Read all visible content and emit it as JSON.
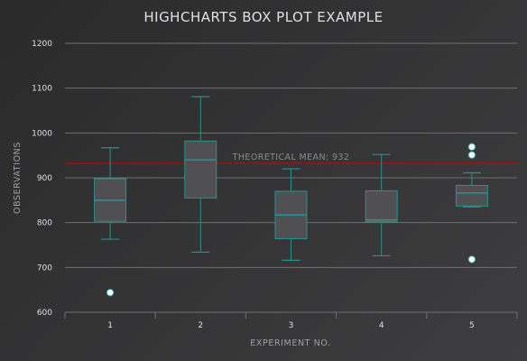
{
  "chart_data": {
    "type": "boxplot",
    "title": "HIGHCHARTS BOX PLOT EXAMPLE",
    "xlabel": "EXPERIMENT NO.",
    "ylabel": "OBSERVATIONS",
    "categories": [
      "1",
      "2",
      "3",
      "4",
      "5"
    ],
    "ylim": [
      600,
      1200
    ],
    "y_ticks": [
      600,
      700,
      800,
      900,
      1000,
      1100,
      1200
    ],
    "grid": true,
    "series": [
      {
        "type": "boxplot",
        "boxes": [
          [
            763,
            803,
            850,
            898,
            967
          ],
          [
            734,
            855,
            940,
            982,
            1081
          ],
          [
            716,
            764,
            817,
            870,
            920
          ],
          [
            726,
            802,
            806,
            871,
            952
          ],
          [
            835,
            837,
            866,
            883,
            911
          ]
        ]
      },
      {
        "type": "scatter",
        "points": [
          {
            "x": "1",
            "y": 644
          },
          {
            "x": "5",
            "y": 718
          },
          {
            "x": "5",
            "y": 951
          },
          {
            "x": "5",
            "y": 969
          }
        ]
      }
    ],
    "plot_lines": [
      {
        "value": 932,
        "label": "THEORETICAL MEAN: 932",
        "color": "#cc0000"
      }
    ],
    "colors": {
      "box_stroke": "#2b908f",
      "box_fill": "#505053",
      "outlier_fill": "#ffffff",
      "outlier_stroke": "#2b908f",
      "grid": "#707073",
      "text": "#e0e0e3"
    }
  }
}
